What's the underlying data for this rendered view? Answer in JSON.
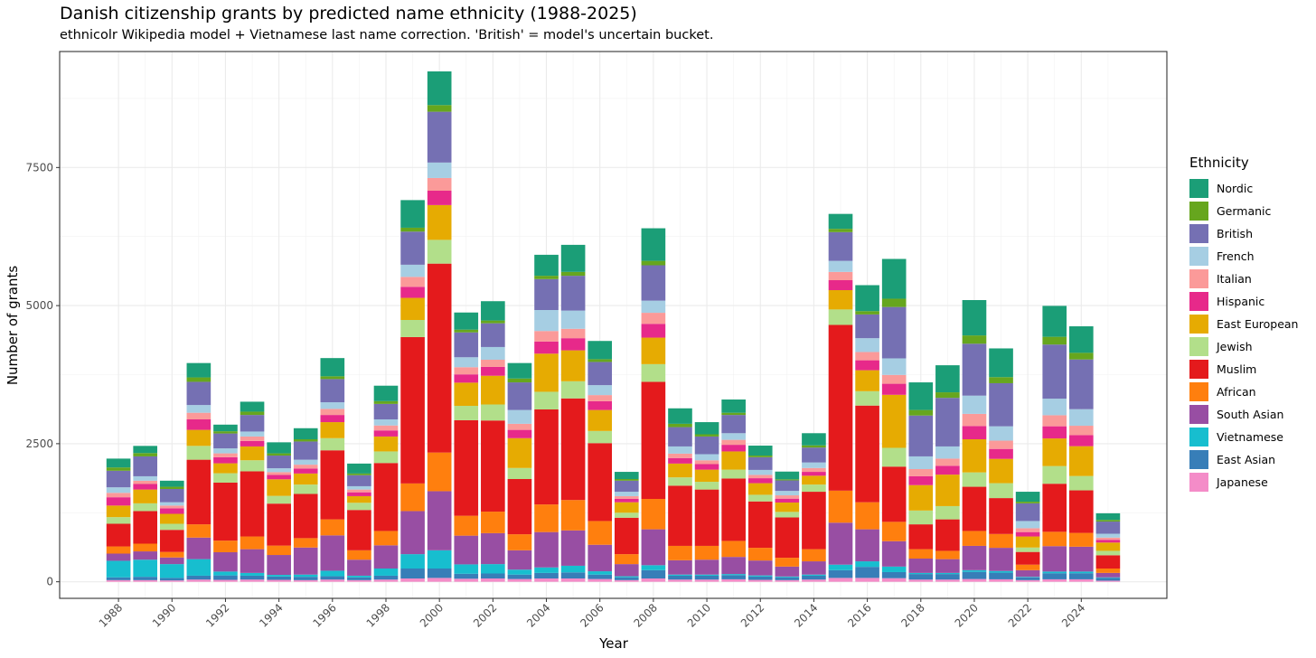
{
  "chart_data": {
    "type": "bar",
    "stacked": true,
    "title": "Danish citizenship grants by predicted name ethnicity (1988-2025)",
    "subtitle": "ethnicolr Wikipedia model + Vietnamese last name correction. 'British' = model's uncertain bucket.",
    "xlabel": "Year",
    "ylabel": "Number of grants",
    "ylim": [
      -300,
      9600
    ],
    "yticks": [
      0,
      2500,
      5000,
      7500
    ],
    "xticks": [
      1988,
      1990,
      1992,
      1994,
      1996,
      1998,
      2000,
      2002,
      2004,
      2006,
      2008,
      2010,
      2012,
      2014,
      2016,
      2018,
      2020,
      2022,
      2024
    ],
    "legend_title": "Ethnicity",
    "legend_position": "right",
    "categories": [
      1988,
      1989,
      1990,
      1991,
      1992,
      1993,
      1994,
      1995,
      1996,
      1997,
      1998,
      1999,
      2000,
      2001,
      2002,
      2003,
      2004,
      2005,
      2006,
      2007,
      2008,
      2009,
      2010,
      2011,
      2012,
      2013,
      2014,
      2015,
      2016,
      2017,
      2018,
      2019,
      2020,
      2021,
      2022,
      2023,
      2024,
      2025
    ],
    "series": [
      {
        "name": "Japanese",
        "color": "#f48cc8",
        "values": [
          30,
          30,
          25,
          40,
          35,
          40,
          35,
          30,
          40,
          30,
          40,
          60,
          70,
          55,
          60,
          50,
          60,
          60,
          50,
          30,
          60,
          40,
          40,
          45,
          35,
          30,
          40,
          70,
          70,
          65,
          40,
          40,
          50,
          45,
          30,
          45,
          45,
          20
        ]
      },
      {
        "name": "East Asian",
        "color": "#377eb8",
        "values": [
          50,
          60,
          45,
          70,
          80,
          70,
          60,
          60,
          60,
          50,
          70,
          180,
          170,
          90,
          90,
          80,
          100,
          110,
          80,
          50,
          150,
          70,
          70,
          75,
          60,
          50,
          70,
          140,
          200,
          110,
          100,
          100,
          130,
          120,
          50,
          110,
          110,
          50
        ]
      },
      {
        "name": "Vietnamese",
        "color": "#17becf",
        "values": [
          300,
          310,
          250,
          300,
          70,
          50,
          30,
          40,
          100,
          30,
          130,
          260,
          330,
          170,
          170,
          90,
          100,
          120,
          60,
          20,
          90,
          20,
          20,
          20,
          20,
          15,
          20,
          100,
          100,
          100,
          20,
          20,
          30,
          30,
          10,
          30,
          30,
          10
        ]
      },
      {
        "name": "South Asian",
        "color": "#984ea3",
        "values": [
          130,
          150,
          120,
          390,
          350,
          430,
          360,
          490,
          640,
          290,
          420,
          780,
          1070,
          520,
          560,
          350,
          640,
          640,
          480,
          220,
          650,
          260,
          270,
          310,
          270,
          180,
          240,
          760,
          580,
          460,
          260,
          250,
          440,
          420,
          120,
          460,
          450,
          80
        ]
      },
      {
        "name": "African",
        "color": "#ff7f0e",
        "values": [
          130,
          140,
          100,
          240,
          210,
          230,
          170,
          170,
          290,
          170,
          260,
          500,
          700,
          360,
          390,
          290,
          500,
          550,
          430,
          180,
          550,
          260,
          250,
          290,
          230,
          160,
          220,
          580,
          490,
          350,
          170,
          150,
          270,
          250,
          100,
          260,
          250,
          80
        ]
      },
      {
        "name": "Muslim",
        "color": "#e41a1c",
        "values": [
          410,
          590,
          400,
          1170,
          1050,
          1180,
          760,
          800,
          1250,
          730,
          1230,
          2650,
          3420,
          1730,
          1650,
          1000,
          1720,
          1840,
          1410,
          660,
          2120,
          1090,
          1020,
          1130,
          840,
          730,
          1040,
          3000,
          1750,
          1000,
          450,
          570,
          800,
          650,
          230,
          870,
          770,
          240
        ]
      },
      {
        "name": "Jewish",
        "color": "#b2df8a",
        "values": [
          120,
          140,
          110,
          250,
          170,
          200,
          140,
          170,
          220,
          130,
          210,
          310,
          430,
          260,
          290,
          200,
          320,
          310,
          220,
          90,
          320,
          150,
          140,
          160,
          120,
          100,
          130,
          280,
          260,
          340,
          250,
          240,
          260,
          270,
          80,
          320,
          260,
          80
        ]
      },
      {
        "name": "East European",
        "color": "#e6ab02",
        "values": [
          210,
          250,
          180,
          290,
          180,
          250,
          300,
          200,
          290,
          120,
          270,
          400,
          630,
          420,
          520,
          540,
          690,
          560,
          380,
          190,
          480,
          250,
          220,
          330,
          210,
          170,
          160,
          350,
          380,
          960,
          460,
          570,
          600,
          440,
          200,
          500,
          540,
          150
        ]
      },
      {
        "name": "Hispanic",
        "color": "#e7298a",
        "values": [
          150,
          100,
          100,
          190,
          110,
          100,
          80,
          90,
          130,
          70,
          110,
          200,
          260,
          150,
          160,
          150,
          220,
          220,
          160,
          60,
          250,
          100,
          100,
          120,
          90,
          70,
          70,
          180,
          180,
          200,
          160,
          160,
          240,
          180,
          80,
          220,
          200,
          50
        ]
      },
      {
        "name": "Italian",
        "color": "#fb9a99",
        "values": [
          80,
          60,
          50,
          120,
          70,
          80,
          50,
          70,
          110,
          50,
          90,
          180,
          230,
          130,
          130,
          110,
          190,
          170,
          110,
          50,
          200,
          80,
          70,
          90,
          60,
          60,
          70,
          150,
          150,
          160,
          130,
          130,
          220,
          150,
          70,
          200,
          170,
          40
        ]
      },
      {
        "name": "French",
        "color": "#a6cee3",
        "values": [
          100,
          80,
          60,
          140,
          90,
          90,
          70,
          90,
          120,
          60,
          110,
          220,
          280,
          180,
          230,
          250,
          380,
          330,
          180,
          80,
          220,
          130,
          110,
          120,
          90,
          80,
          100,
          200,
          250,
          300,
          230,
          220,
          330,
          260,
          130,
          300,
          300,
          70
        ]
      },
      {
        "name": "British",
        "color": "#7570b3",
        "values": [
          300,
          360,
          240,
          420,
          270,
          300,
          230,
          330,
          420,
          200,
          280,
          600,
          920,
          450,
          430,
          500,
          560,
          630,
          420,
          200,
          640,
          350,
          320,
          330,
          230,
          190,
          270,
          520,
          430,
          930,
          740,
          880,
          940,
          780,
          320,
          980,
          900,
          220
        ]
      },
      {
        "name": "Germanic",
        "color": "#66a61e",
        "values": [
          60,
          60,
          40,
          80,
          40,
          60,
          40,
          40,
          50,
          30,
          50,
          70,
          120,
          50,
          50,
          70,
          60,
          70,
          50,
          30,
          80,
          60,
          40,
          40,
          30,
          20,
          40,
          60,
          60,
          150,
          100,
          100,
          150,
          110,
          30,
          140,
          120,
          30
        ]
      },
      {
        "name": "Nordic",
        "color": "#1b9e77",
        "values": [
          160,
          130,
          110,
          260,
          120,
          180,
          200,
          200,
          330,
          180,
          280,
          500,
          610,
          310,
          350,
          280,
          380,
          490,
          330,
          130,
          590,
          280,
          220,
          240,
          180,
          140,
          220,
          270,
          470,
          720,
          500,
          490,
          640,
          520,
          180,
          560,
          480,
          120
        ]
      }
    ]
  }
}
